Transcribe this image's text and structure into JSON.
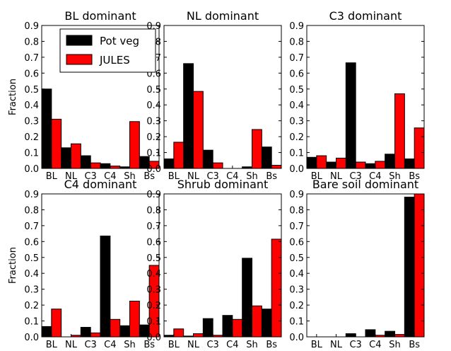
{
  "figure": {
    "ylabel": "Fraction",
    "yticks": [
      "0.0",
      "0.1",
      "0.2",
      "0.3",
      "0.4",
      "0.5",
      "0.6",
      "0.7",
      "0.8",
      "0.9"
    ],
    "legend": [
      {
        "label": "Pot veg",
        "color": "#000000"
      },
      {
        "label": "JULES",
        "color": "#ff0000"
      }
    ]
  },
  "chart_data": [
    {
      "type": "bar",
      "title": "BL dominant",
      "categories": [
        "BL",
        "NL",
        "C3",
        "C4",
        "Sh",
        "Bs"
      ],
      "ylabel": "Fraction",
      "ylim": [
        0,
        0.9
      ],
      "legend_position": "top-right",
      "series": [
        {
          "name": "Pot veg",
          "color": "#000000",
          "values": [
            0.5,
            0.13,
            0.08,
            0.03,
            0.01,
            0.075
          ]
        },
        {
          "name": "JULES",
          "color": "#ff0000",
          "values": [
            0.31,
            0.155,
            0.035,
            0.015,
            0.295,
            0.045
          ]
        }
      ]
    },
    {
      "type": "bar",
      "title": "NL dominant",
      "categories": [
        "BL",
        "NL",
        "C3",
        "C4",
        "Sh",
        "Bs"
      ],
      "ylim": [
        0,
        0.9
      ],
      "series": [
        {
          "name": "Pot veg",
          "color": "#000000",
          "values": [
            0.06,
            0.66,
            0.115,
            0.0,
            0.01,
            0.135
          ]
        },
        {
          "name": "JULES",
          "color": "#ff0000",
          "values": [
            0.165,
            0.485,
            0.035,
            0.0,
            0.245,
            0.02
          ]
        }
      ]
    },
    {
      "type": "bar",
      "title": "C3 dominant",
      "categories": [
        "BL",
        "NL",
        "C3",
        "C4",
        "Sh",
        "Bs"
      ],
      "ylim": [
        0,
        0.9
      ],
      "series": [
        {
          "name": "Pot veg",
          "color": "#000000",
          "values": [
            0.07,
            0.04,
            0.665,
            0.03,
            0.09,
            0.06
          ]
        },
        {
          "name": "JULES",
          "color": "#ff0000",
          "values": [
            0.08,
            0.065,
            0.04,
            0.045,
            0.47,
            0.255
          ]
        }
      ]
    },
    {
      "type": "bar",
      "title": "C4 dominant",
      "categories": [
        "BL",
        "NL",
        "C3",
        "C4",
        "Sh",
        "Bs"
      ],
      "ylabel": "Fraction",
      "ylim": [
        0,
        0.9
      ],
      "series": [
        {
          "name": "Pot veg",
          "color": "#000000",
          "values": [
            0.065,
            0.0,
            0.06,
            0.635,
            0.07,
            0.075
          ]
        },
        {
          "name": "JULES",
          "color": "#ff0000",
          "values": [
            0.175,
            0.01,
            0.025,
            0.11,
            0.225,
            0.45
          ]
        }
      ]
    },
    {
      "type": "bar",
      "title": "Shrub dominant",
      "categories": [
        "BL",
        "NL",
        "C3",
        "C4",
        "Sh",
        "Bs"
      ],
      "ylim": [
        0,
        0.9
      ],
      "series": [
        {
          "name": "Pot veg",
          "color": "#000000",
          "values": [
            0.01,
            0.005,
            0.115,
            0.135,
            0.495,
            0.175
          ]
        },
        {
          "name": "JULES",
          "color": "#ff0000",
          "values": [
            0.05,
            0.02,
            0.01,
            0.11,
            0.195,
            0.615
          ]
        }
      ]
    },
    {
      "type": "bar",
      "title": "Bare soil dominant",
      "categories": [
        "BL",
        "NL",
        "C3",
        "C4",
        "Sh",
        "Bs"
      ],
      "ylim": [
        0,
        0.9
      ],
      "series": [
        {
          "name": "Pot veg",
          "color": "#000000",
          "values": [
            0.0,
            0.0,
            0.02,
            0.045,
            0.035,
            0.88
          ]
        },
        {
          "name": "JULES",
          "color": "#ff0000",
          "values": [
            0.0,
            0.0,
            0.0,
            0.01,
            0.015,
            0.9
          ]
        }
      ]
    }
  ]
}
